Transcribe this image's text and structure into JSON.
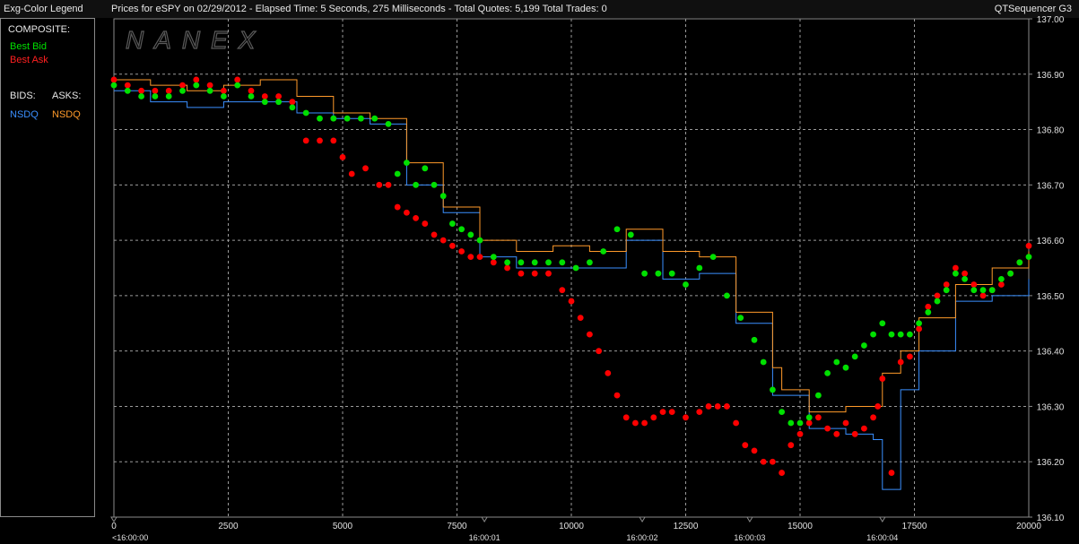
{
  "header": {
    "left_title": "Exg-Color Legend",
    "center_title": "Prices for  eSPY  on  02/29/2012  -  Elapsed Time: 5 Seconds, 275 Milliseconds  -  Total Quotes: 5,199  Total Trades: 0",
    "right_title": "QTSequencer G3"
  },
  "legend": {
    "composite_label": "COMPOSITE:",
    "best_bid": "Best Bid",
    "best_ask": "Best Ask",
    "bids_label": "BIDS:",
    "asks_label": "ASKS:",
    "bid_exchange": "NSDQ",
    "ask_exchange": "NSDQ"
  },
  "colors": {
    "best_bid": "#00e000",
    "best_ask": "#ff0000",
    "nsdq_bid": "#3a8fff",
    "nsdq_ask": "#ff9a2a",
    "grid": "#9a9a9a"
  },
  "watermark": "NANEX",
  "chart_data": {
    "type": "scatter",
    "xlim": [
      0,
      20000
    ],
    "ylim": [
      136.1,
      137.0
    ],
    "x_ticks": [
      0,
      2500,
      5000,
      7500,
      10000,
      12500,
      15000,
      17500,
      20000
    ],
    "x_tick_labels": [
      "0",
      "2500",
      "5000",
      "7500",
      "10000",
      "12500",
      "15000",
      "17500",
      "20000"
    ],
    "y_ticks": [
      136.1,
      136.2,
      136.3,
      136.4,
      136.5,
      136.6,
      136.7,
      136.8,
      136.9,
      137.0
    ],
    "y_tick_labels": [
      "136.10",
      "136.20",
      "136.30",
      "136.40",
      "136.50",
      "136.60",
      "136.70",
      "136.80",
      "136.90",
      "137.00"
    ],
    "time_ticks": [
      {
        "x": 0,
        "label": "<16:00:00"
      },
      {
        "x": 8100,
        "label": "16:00:01"
      },
      {
        "x": 11550,
        "label": "16:00:02"
      },
      {
        "x": 13900,
        "label": "16:00:03"
      },
      {
        "x": 16800,
        "label": "16:00:04"
      }
    ],
    "grid": true,
    "series": [
      {
        "name": "Best Bid",
        "x": [
          0,
          300,
          600,
          900,
          1200,
          1500,
          1800,
          2100,
          2400,
          2700,
          3000,
          3300,
          3600,
          3900,
          4200,
          4500,
          4800,
          5100,
          5400,
          5700,
          6000,
          6200,
          6400,
          6600,
          6800,
          7000,
          7200,
          7400,
          7600,
          7800,
          8000,
          8300,
          8600,
          8900,
          9200,
          9500,
          9800,
          10100,
          10400,
          10700,
          11000,
          11300,
          11600,
          11900,
          12200,
          12500,
          12800,
          13100,
          13400,
          13700,
          14000,
          14200,
          14400,
          14600,
          14800,
          15000,
          15200,
          15400,
          15600,
          15800,
          16000,
          16200,
          16400,
          16600,
          16800,
          17000,
          17200,
          17400,
          17600,
          17800,
          18000,
          18200,
          18400,
          18600,
          18800,
          19000,
          19200,
          19400,
          19600,
          19800,
          20000
        ],
        "y": [
          136.88,
          136.87,
          136.86,
          136.86,
          136.86,
          136.87,
          136.88,
          136.87,
          136.86,
          136.88,
          136.86,
          136.85,
          136.85,
          136.84,
          136.83,
          136.82,
          136.82,
          136.82,
          136.82,
          136.82,
          136.81,
          136.72,
          136.74,
          136.7,
          136.73,
          136.7,
          136.68,
          136.63,
          136.62,
          136.61,
          136.6,
          136.57,
          136.56,
          136.56,
          136.56,
          136.56,
          136.56,
          136.55,
          136.56,
          136.58,
          136.62,
          136.61,
          136.54,
          136.54,
          136.54,
          136.52,
          136.55,
          136.57,
          136.5,
          136.46,
          136.42,
          136.38,
          136.33,
          136.29,
          136.27,
          136.27,
          136.28,
          136.32,
          136.36,
          136.38,
          136.37,
          136.39,
          136.41,
          136.43,
          136.45,
          136.43,
          136.43,
          136.43,
          136.45,
          136.47,
          136.49,
          136.51,
          136.54,
          136.53,
          136.51,
          136.51,
          136.51,
          136.53,
          136.54,
          136.56,
          136.57
        ]
      },
      {
        "name": "Best Ask",
        "x": [
          0,
          300,
          600,
          900,
          1200,
          1500,
          1800,
          2100,
          2400,
          2700,
          3000,
          3300,
          3600,
          3900,
          4200,
          4500,
          4800,
          5000,
          5200,
          5500,
          5800,
          6000,
          6200,
          6400,
          6600,
          6800,
          7000,
          7200,
          7400,
          7600,
          7800,
          8000,
          8300,
          8600,
          8900,
          9200,
          9500,
          9800,
          10000,
          10200,
          10400,
          10600,
          10800,
          11000,
          11200,
          11400,
          11600,
          11800,
          12000,
          12200,
          12500,
          12800,
          13000,
          13200,
          13400,
          13600,
          13800,
          14000,
          14200,
          14400,
          14600,
          14800,
          15000,
          15200,
          15400,
          15600,
          15800,
          16000,
          16200,
          16400,
          16600,
          16700,
          16800,
          17000,
          17200,
          17400,
          17600,
          17800,
          18000,
          18200,
          18400,
          18600,
          18800,
          19000,
          19200,
          19400,
          19600,
          19800,
          20000
        ],
        "y": [
          136.89,
          136.88,
          136.87,
          136.87,
          136.87,
          136.88,
          136.89,
          136.88,
          136.87,
          136.89,
          136.87,
          136.86,
          136.86,
          136.85,
          136.78,
          136.78,
          136.78,
          136.75,
          136.72,
          136.73,
          136.7,
          136.7,
          136.66,
          136.65,
          136.64,
          136.63,
          136.61,
          136.6,
          136.59,
          136.58,
          136.57,
          136.57,
          136.56,
          136.55,
          136.54,
          136.54,
          136.54,
          136.51,
          136.49,
          136.46,
          136.43,
          136.4,
          136.36,
          136.32,
          136.28,
          136.27,
          136.27,
          136.28,
          136.29,
          136.29,
          136.28,
          136.29,
          136.3,
          136.3,
          136.3,
          136.27,
          136.23,
          136.22,
          136.2,
          136.2,
          136.18,
          136.23,
          136.25,
          136.27,
          136.28,
          136.26,
          136.25,
          136.27,
          136.25,
          136.26,
          136.28,
          136.3,
          136.35,
          136.18,
          136.38,
          136.39,
          136.44,
          136.48,
          136.5,
          136.52,
          136.55,
          136.54,
          136.52,
          136.5,
          136.51,
          136.52,
          136.54,
          136.56,
          136.59
        ]
      },
      {
        "name": "NSDQ Bid",
        "x": [
          0,
          800,
          1600,
          2400,
          3200,
          4000,
          4800,
          5600,
          6400,
          7200,
          8000,
          8800,
          9600,
          10400,
          11200,
          12000,
          12800,
          13600,
          14400,
          15200,
          16000,
          16600,
          16800,
          17200,
          17600,
          18400,
          19200,
          20000
        ],
        "y": [
          136.87,
          136.85,
          136.84,
          136.85,
          136.85,
          136.83,
          136.82,
          136.81,
          136.7,
          136.65,
          136.57,
          136.55,
          136.55,
          136.55,
          136.6,
          136.53,
          136.54,
          136.45,
          136.32,
          136.26,
          136.25,
          136.24,
          136.15,
          136.33,
          136.4,
          136.49,
          136.5,
          136.53
        ]
      },
      {
        "name": "NSDQ Ask",
        "x": [
          0,
          800,
          1600,
          2400,
          3200,
          4000,
          4800,
          5600,
          6400,
          7200,
          8000,
          8800,
          9600,
          10400,
          11200,
          12000,
          12800,
          13600,
          14400,
          14600,
          15200,
          16000,
          16800,
          17200,
          17600,
          18400,
          19200,
          20000
        ],
        "y": [
          136.89,
          136.88,
          136.87,
          136.88,
          136.89,
          136.86,
          136.83,
          136.82,
          136.74,
          136.66,
          136.6,
          136.58,
          136.59,
          136.58,
          136.62,
          136.58,
          136.57,
          136.47,
          136.37,
          136.33,
          136.29,
          136.3,
          136.36,
          136.4,
          136.46,
          136.52,
          136.55,
          136.58
        ]
      }
    ]
  }
}
